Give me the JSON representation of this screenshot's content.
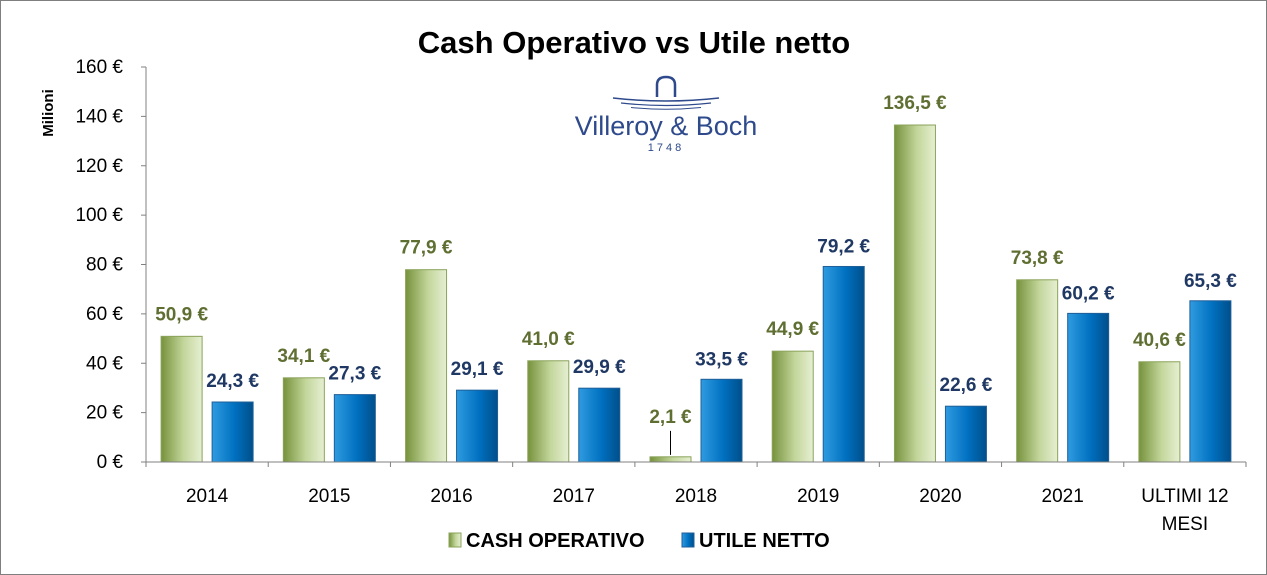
{
  "logo": {
    "name": "Villeroy & Boch",
    "year": "1748",
    "color": "#2e4a8c"
  },
  "chart_data": {
    "type": "bar",
    "title": "Cash Operativo vs Utile netto",
    "ylabel": "Milioni",
    "xlabel": "",
    "ylim": [
      0,
      160
    ],
    "yticks": [
      0,
      20,
      40,
      60,
      80,
      100,
      120,
      140,
      160
    ],
    "ytick_labels": [
      "0 €",
      "20 €",
      "40 €",
      "60 €",
      "80 €",
      "100 €",
      "120 €",
      "140 €",
      "160 €"
    ],
    "categories": [
      [
        "2014"
      ],
      [
        "2015"
      ],
      [
        "2016"
      ],
      [
        "2017"
      ],
      [
        "2018"
      ],
      [
        "2019"
      ],
      [
        "2020"
      ],
      [
        "2021"
      ],
      [
        "ULTIMI 12",
        "MESI"
      ]
    ],
    "series": [
      {
        "name": "CASH OPERATIVO",
        "color": "#9bbb59",
        "values": [
          50.9,
          34.1,
          77.9,
          41.0,
          2.1,
          44.9,
          136.5,
          73.8,
          40.6
        ],
        "labels": [
          "50,9 €",
          "34,1 €",
          "77,9 €",
          "41,0 €",
          "2,1 €",
          "44,9 €",
          "136,5 €",
          "73,8 €",
          "40,6 €"
        ]
      },
      {
        "name": "UTILE NETTO",
        "color": "#0070c0",
        "values": [
          24.3,
          27.3,
          29.1,
          29.9,
          33.5,
          79.2,
          22.6,
          60.2,
          65.3
        ],
        "labels": [
          "24,3 €",
          "27,3 €",
          "29,1 €",
          "29,9 €",
          "33,5 €",
          "79,2 €",
          "22,6 €",
          "60,2 €",
          "65,3 €"
        ]
      }
    ],
    "grid": false,
    "legend": "bottom"
  }
}
